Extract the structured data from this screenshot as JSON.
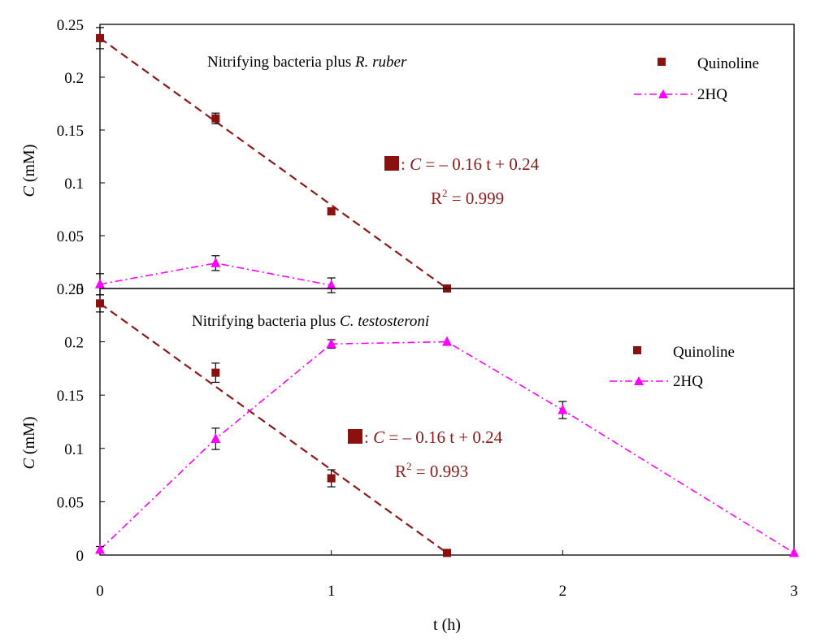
{
  "chart_data": [
    {
      "type": "scatter",
      "title": "Nitrifying bacteria plus R. ruber",
      "title_plain": "Nitrifying bacteria plus ",
      "title_italic": "R. ruber",
      "ylabel_italic": "C",
      "ylabel_rest": " (mM)",
      "ylim": [
        0,
        0.25
      ],
      "yticks": [
        "0.25",
        "0.2",
        "0.15",
        "0.1",
        "0.05",
        "0"
      ],
      "xlim": [
        0,
        3
      ],
      "grid": false,
      "legend_position": "top-right",
      "series": [
        {
          "name": "Quinoline",
          "marker": "square",
          "color": "#8B1010",
          "x": [
            0,
            0.5,
            1,
            1.5
          ],
          "y": [
            0.237,
            0.161,
            0.073,
            0
          ],
          "err": [
            0.01,
            0.005,
            0.003,
            0
          ]
        },
        {
          "name": "2HQ",
          "marker": "triangle",
          "color": "#FF00FF",
          "line": "dash-dot",
          "x": [
            0,
            0.5,
            1
          ],
          "y": [
            0.004,
            0.024,
            0.003
          ],
          "err": [
            0.01,
            0.007,
            0.007
          ]
        }
      ],
      "fit": {
        "x": [
          0,
          1.5
        ],
        "y": [
          0.237,
          0
        ],
        "color": "#8B1A1A",
        "line": "dashed"
      },
      "annotation": {
        "eq_italic": "C",
        "eq_rest": " = – 0.16 t + 0.24",
        "r2": "R",
        "r2_sup": "2",
        "r2_rest": " = 0.999"
      }
    },
    {
      "type": "scatter",
      "title": "Nitrifying bacteria plus C. testosteroni",
      "title_plain": "Nitrifying bacteria plus ",
      "title_italic": "C. testosteroni",
      "ylabel_italic": "C",
      "ylabel_rest": " (mM)",
      "xlabel": "t (h)",
      "ylim": [
        0,
        0.25
      ],
      "yticks": [
        "0.25",
        "0.2",
        "0.15",
        "0.1",
        "0.05",
        "0"
      ],
      "xlim": [
        0,
        3
      ],
      "xticks": [
        "0",
        "1",
        "2",
        "3"
      ],
      "grid": false,
      "legend_position": "top-right",
      "series": [
        {
          "name": "Quinoline",
          "marker": "square",
          "color": "#8B1010",
          "x": [
            0,
            0.5,
            1,
            1.5
          ],
          "y": [
            0.236,
            0.171,
            0.072,
            0.002
          ],
          "err": [
            0.008,
            0.009,
            0.008,
            0
          ]
        },
        {
          "name": "2HQ",
          "marker": "triangle",
          "color": "#FF00FF",
          "line": "dash-dot",
          "x": [
            0,
            0.5,
            1,
            1.5,
            2,
            3
          ],
          "y": [
            0.005,
            0.109,
            0.198,
            0.2,
            0.136,
            0.002
          ],
          "err": [
            0.003,
            0.01,
            0.004,
            0,
            0.008,
            0
          ]
        }
      ],
      "fit": {
        "x": [
          0,
          1.5
        ],
        "y": [
          0.236,
          0.002
        ],
        "color": "#8B1A1A",
        "line": "dashed"
      },
      "annotation": {
        "eq_italic": "C",
        "eq_rest": " = – 0.16 t + 0.24",
        "r2": "R",
        "r2_sup": "2",
        "r2_rest": " = 0.993"
      }
    }
  ]
}
